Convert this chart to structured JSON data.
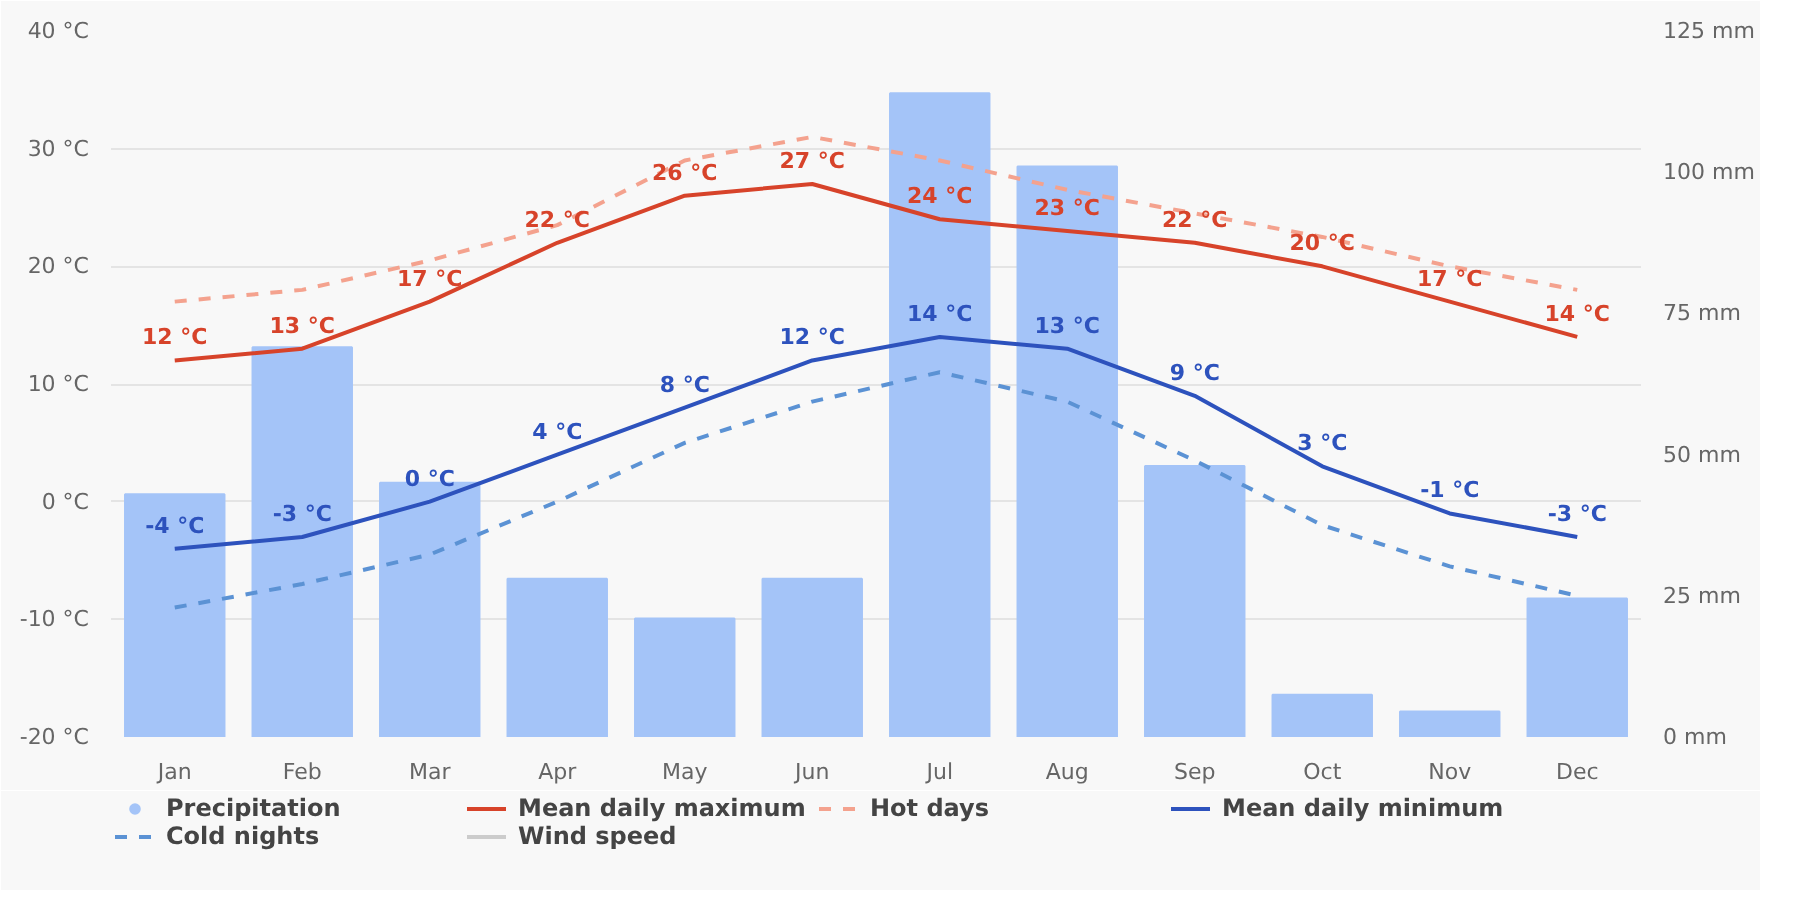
{
  "chart_data": {
    "type": "line",
    "categories": [
      "Jan",
      "Feb",
      "Mar",
      "Apr",
      "May",
      "Jun",
      "Jul",
      "Aug",
      "Sep",
      "Oct",
      "Nov",
      "Dec"
    ],
    "series": [
      {
        "name": "Precipitation",
        "type": "bar",
        "axis": "y2",
        "color": "#a4c4f8",
        "values": [
          43,
          69,
          45,
          28,
          21,
          28,
          114,
          101,
          48,
          7.5,
          4.5,
          24.5
        ]
      },
      {
        "name": "Mean daily maximum",
        "color": "#d7432a",
        "line_style": "solid",
        "values": [
          12,
          13,
          17,
          22,
          26,
          27,
          24,
          23,
          22,
          20,
          17,
          14
        ],
        "value_labels": [
          "12 °C",
          "13 °C",
          "17 °C",
          "22 °C",
          "26 °C",
          "27 °C",
          "24 °C",
          "23 °C",
          "22 °C",
          "20 °C",
          "17 °C",
          "14 °C"
        ]
      },
      {
        "name": "Hot days",
        "color": "#f4a28e",
        "line_style": "dashed",
        "values": [
          17,
          18,
          20.5,
          23.5,
          29,
          31,
          29,
          26.5,
          24.5,
          22.5,
          20,
          18
        ]
      },
      {
        "name": "Mean daily minimum",
        "color": "#2d52bd",
        "line_style": "solid",
        "values": [
          -4,
          -3,
          0,
          4,
          8,
          12,
          14,
          13,
          9,
          3,
          -1,
          -3
        ],
        "value_labels": [
          "-4 °C",
          "-3 °C",
          "0 °C",
          "4 °C",
          "8 °C",
          "12 °C",
          "14 °C",
          "13 °C",
          "9 °C",
          "3 °C",
          "-1 °C",
          "-3 °C"
        ]
      },
      {
        "name": "Cold nights",
        "color": "#5b92d4",
        "line_style": "dashed",
        "values": [
          -9,
          -7,
          -4.5,
          0,
          5,
          8.5,
          11,
          8.5,
          3.5,
          -2,
          -5.5,
          -8
        ]
      },
      {
        "name": "Wind speed",
        "color": "#cccccc",
        "line_style": "solid",
        "values": [
          null,
          null,
          null,
          null,
          null,
          null,
          null,
          null,
          null,
          null,
          null,
          null
        ]
      }
    ],
    "ylim": [
      -20,
      40
    ],
    "yticks": [
      {
        "value": -20,
        "label": "-20 °C"
      },
      {
        "value": -10,
        "label": "-10 °C"
      },
      {
        "value": 0,
        "label": "0 °C"
      },
      {
        "value": 10,
        "label": "10 °C"
      },
      {
        "value": 20,
        "label": "20 °C"
      },
      {
        "value": 30,
        "label": "30 °C"
      },
      {
        "value": 40,
        "label": "40 °C"
      }
    ],
    "y2lim": [
      0,
      125
    ],
    "y2ticks": [
      {
        "value": 0,
        "label": "0 mm"
      },
      {
        "value": 25,
        "label": "25 mm"
      },
      {
        "value": 50,
        "label": "50 mm"
      },
      {
        "value": 75,
        "label": "75 mm"
      },
      {
        "value": 100,
        "label": "100 mm"
      },
      {
        "value": 125,
        "label": "125 mm"
      }
    ],
    "grid": "y",
    "legend": "bottom"
  }
}
